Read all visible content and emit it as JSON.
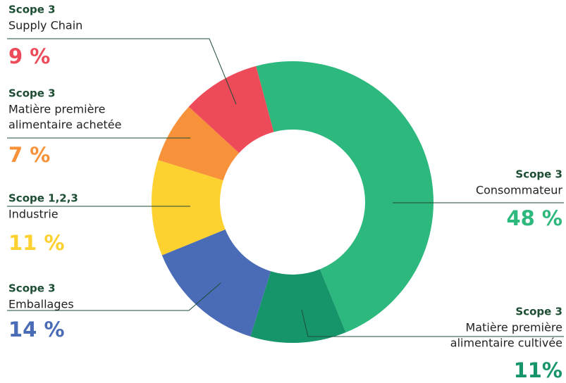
{
  "chart_data": {
    "type": "donut",
    "scopes": [
      "Scope 3",
      "Scope 3",
      "Scope 3",
      "Scope 1,2,3",
      "Scope 3",
      "Scope 3"
    ],
    "categories": [
      [
        "Consommateur"
      ],
      [
        "Matière première",
        "alimentaire cultivée"
      ],
      [
        "Emballages"
      ],
      [
        "Industrie"
      ],
      [
        "Matière première",
        "alimentaire achetée"
      ],
      [
        "Supply Chain"
      ]
    ],
    "values": [
      48,
      11,
      14,
      11,
      7,
      9
    ],
    "value_labels": [
      "48 %",
      "11%",
      "14 %",
      "11 %",
      "7 %",
      "9 %"
    ],
    "colors": [
      "#2db87d",
      "#16946a",
      "#4a6bb5",
      "#fdd130",
      "#f7923a",
      "#ee4b5a"
    ]
  }
}
